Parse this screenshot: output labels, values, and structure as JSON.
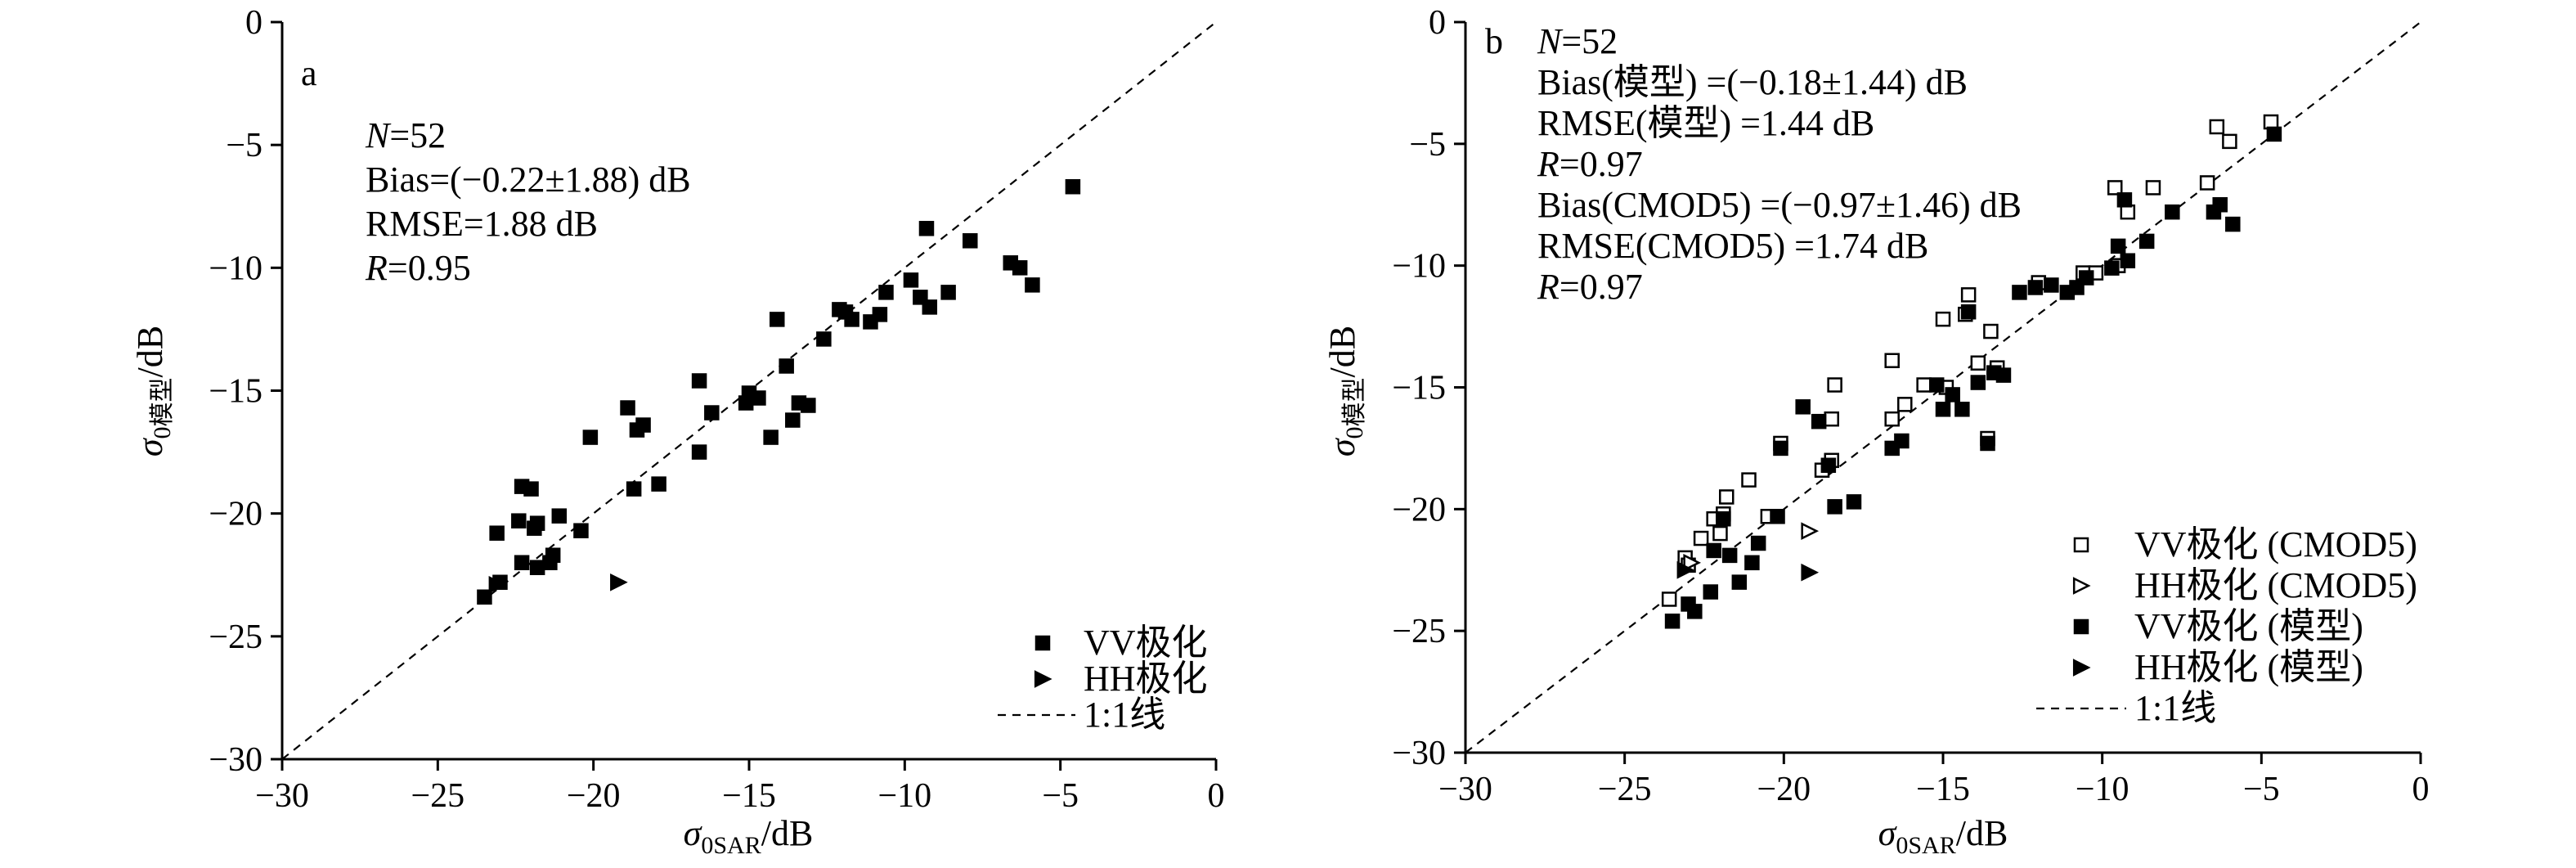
{
  "chart_data": [
    {
      "type": "scatter",
      "panel_label": "a",
      "xlabel": {
        "symbol": "σ",
        "sub": "0SAR",
        "unit": "/dB"
      },
      "ylabel": {
        "symbol": "σ",
        "sub": "0模型",
        "unit": "/dB"
      },
      "xlim": [
        -30,
        0
      ],
      "ylim": [
        -30,
        0
      ],
      "xticks": [
        -30,
        -25,
        -20,
        -15,
        -10,
        -5,
        0
      ],
      "yticks": [
        0,
        -5,
        -10,
        -15,
        -20,
        -25,
        -30
      ],
      "xtick_labels": [
        "−30",
        "−25",
        "−20",
        "−15",
        "−10",
        "−5",
        "0"
      ],
      "ytick_labels": [
        "0",
        "−5",
        "−10",
        "−15",
        "−20",
        "−25",
        "−30"
      ],
      "grid": false,
      "legend_position": "bottom-right",
      "stats": [
        {
          "italic": "N",
          "rest": "=52"
        },
        {
          "italic": "",
          "rest": "Bias=(−0.22±1.88) dB"
        },
        {
          "italic": "",
          "rest": "RMSE=1.88 dB"
        },
        {
          "italic": "R",
          "rest": "=0.95"
        }
      ],
      "reference_line": {
        "name": "1:1线",
        "x": [
          -30,
          0
        ],
        "y": [
          -30,
          0
        ]
      },
      "series": [
        {
          "name": "VV极化",
          "marker": "filled-square",
          "points": [
            [
              -23.5,
              -23.4
            ],
            [
              -23.0,
              -22.8
            ],
            [
              -23.1,
              -20.8
            ],
            [
              -22.3,
              -22.0
            ],
            [
              -22.4,
              -20.3
            ],
            [
              -22.3,
              -18.9
            ],
            [
              -22.0,
              -19.0
            ],
            [
              -21.9,
              -20.6
            ],
            [
              -21.8,
              -20.4
            ],
            [
              -21.8,
              -22.2
            ],
            [
              -21.4,
              -22.0
            ],
            [
              -21.3,
              -21.7
            ],
            [
              -21.1,
              -20.1
            ],
            [
              -20.4,
              -20.7
            ],
            [
              -20.1,
              -16.9
            ],
            [
              -18.9,
              -15.7
            ],
            [
              -18.6,
              -16.6
            ],
            [
              -18.4,
              -16.4
            ],
            [
              -18.7,
              -19.0
            ],
            [
              -17.9,
              -18.8
            ],
            [
              -16.6,
              -14.6
            ],
            [
              -16.6,
              -17.5
            ],
            [
              -16.2,
              -15.9
            ],
            [
              -15.0,
              -15.1
            ],
            [
              -15.1,
              -15.5
            ],
            [
              -14.7,
              -15.3
            ],
            [
              -14.3,
              -16.9
            ],
            [
              -14.1,
              -12.1
            ],
            [
              -13.8,
              -14.0
            ],
            [
              -13.6,
              -16.2
            ],
            [
              -13.4,
              -15.5
            ],
            [
              -13.1,
              -15.6
            ],
            [
              -12.6,
              -12.9
            ],
            [
              -12.1,
              -11.7
            ],
            [
              -11.9,
              -11.8
            ],
            [
              -11.7,
              -12.1
            ],
            [
              -11.1,
              -12.2
            ],
            [
              -10.8,
              -11.9
            ],
            [
              -10.6,
              -11.0
            ],
            [
              -9.8,
              -10.5
            ],
            [
              -9.5,
              -11.2
            ],
            [
              -9.3,
              -8.4
            ],
            [
              -9.2,
              -11.6
            ],
            [
              -8.6,
              -11.0
            ],
            [
              -7.9,
              -8.9
            ],
            [
              -6.6,
              -9.8
            ],
            [
              -6.3,
              -10.0
            ],
            [
              -5.9,
              -10.7
            ],
            [
              -4.6,
              -6.7
            ]
          ]
        },
        {
          "name": "HH极化",
          "marker": "filled-triangle-right",
          "points": [
            [
              -23.1,
              -22.9
            ],
            [
              -19.2,
              -22.8
            ]
          ]
        }
      ]
    },
    {
      "type": "scatter",
      "panel_label": "b",
      "xlabel": {
        "symbol": "σ",
        "sub": "0SAR",
        "unit": "/dB"
      },
      "ylabel": {
        "symbol": "σ",
        "sub": "0模型",
        "unit": "/dB"
      },
      "xlim": [
        -30,
        0
      ],
      "ylim": [
        -30,
        0
      ],
      "xticks": [
        -30,
        -25,
        -20,
        -15,
        -10,
        -5,
        0
      ],
      "yticks": [
        0,
        -5,
        -10,
        -15,
        -20,
        -25,
        -30
      ],
      "xtick_labels": [
        "−30",
        "−25",
        "−20",
        "−15",
        "−10",
        "−5",
        "0"
      ],
      "ytick_labels": [
        "0",
        "−5",
        "−10",
        "−15",
        "−20",
        "−25",
        "−30"
      ],
      "grid": false,
      "legend_position": "bottom-right",
      "stats": [
        {
          "italic": "N",
          "rest": "=52"
        },
        {
          "italic": "",
          "rest": "Bias(模型) =(−0.18±1.44) dB"
        },
        {
          "italic": "",
          "rest": "RMSE(模型) =1.44 dB"
        },
        {
          "italic": "R",
          "rest": "=0.97"
        },
        {
          "italic": "",
          "rest": "Bias(CMOD5) =(−0.97±1.46) dB"
        },
        {
          "italic": "",
          "rest": "RMSE(CMOD5) =1.74 dB"
        },
        {
          "italic": "R",
          "rest": "=0.97"
        }
      ],
      "reference_line": {
        "name": "1:1线",
        "x": [
          -30,
          0
        ],
        "y": [
          -30,
          0
        ]
      },
      "series": [
        {
          "name": "VV极化 (CMOD5)",
          "marker": "open-square",
          "points": [
            [
              -23.6,
              -23.7
            ],
            [
              -23.1,
              -22.0
            ],
            [
              -23.0,
              -22.3
            ],
            [
              -22.6,
              -21.2
            ],
            [
              -22.2,
              -20.4
            ],
            [
              -22.0,
              -21.0
            ],
            [
              -21.9,
              -20.2
            ],
            [
              -21.8,
              -19.5
            ],
            [
              -21.1,
              -18.8
            ],
            [
              -20.5,
              -20.3
            ],
            [
              -20.1,
              -17.3
            ],
            [
              -18.8,
              -18.4
            ],
            [
              -18.5,
              -18.0
            ],
            [
              -18.5,
              -16.3
            ],
            [
              -18.4,
              -14.9
            ],
            [
              -16.6,
              -16.3
            ],
            [
              -16.6,
              -13.9
            ],
            [
              -16.2,
              -15.7
            ],
            [
              -15.6,
              -14.9
            ],
            [
              -15.0,
              -12.2
            ],
            [
              -14.3,
              -12.0
            ],
            [
              -14.2,
              -11.2
            ],
            [
              -13.9,
              -14.0
            ],
            [
              -13.5,
              -12.7
            ],
            [
              -13.3,
              -14.2
            ],
            [
              -12.0,
              -10.7
            ],
            [
              -10.6,
              -10.3
            ],
            [
              -10.2,
              -10.3
            ],
            [
              -9.6,
              -6.8
            ],
            [
              -9.5,
              -10.0
            ],
            [
              -9.2,
              -7.8
            ],
            [
              -8.4,
              -6.8
            ],
            [
              -6.7,
              -6.6
            ],
            [
              -6.4,
              -4.3
            ],
            [
              -6.0,
              -4.9
            ],
            [
              -4.7,
              -4.1
            ],
            [
              -14.9,
              -15.0
            ],
            [
              -13.6,
              -17.1
            ]
          ]
        },
        {
          "name": "HH极化 (CMOD5)",
          "marker": "open-triangle-right",
          "points": [
            [
              -22.9,
              -22.2
            ],
            [
              -19.2,
              -20.9
            ]
          ]
        },
        {
          "name": "VV极化 (模型)",
          "marker": "filled-square",
          "points": [
            [
              -23.5,
              -24.6
            ],
            [
              -23.0,
              -23.9
            ],
            [
              -22.8,
              -24.2
            ],
            [
              -22.3,
              -23.4
            ],
            [
              -22.2,
              -21.7
            ],
            [
              -21.9,
              -20.4
            ],
            [
              -21.7,
              -21.9
            ],
            [
              -21.4,
              -23.0
            ],
            [
              -21.0,
              -22.2
            ],
            [
              -20.8,
              -21.4
            ],
            [
              -20.2,
              -20.3
            ],
            [
              -20.1,
              -17.5
            ],
            [
              -19.4,
              -15.8
            ],
            [
              -18.9,
              -16.4
            ],
            [
              -18.6,
              -18.2
            ],
            [
              -18.4,
              -19.9
            ],
            [
              -17.8,
              -19.7
            ],
            [
              -16.6,
              -17.5
            ],
            [
              -16.3,
              -17.2
            ],
            [
              -15.2,
              -14.9
            ],
            [
              -15.0,
              -15.9
            ],
            [
              -14.7,
              -15.3
            ],
            [
              -14.4,
              -15.9
            ],
            [
              -14.2,
              -11.9
            ],
            [
              -13.9,
              -14.8
            ],
            [
              -13.6,
              -17.3
            ],
            [
              -13.4,
              -14.4
            ],
            [
              -13.1,
              -14.5
            ],
            [
              -12.6,
              -11.1
            ],
            [
              -12.1,
              -10.9
            ],
            [
              -11.6,
              -10.8
            ],
            [
              -11.1,
              -11.1
            ],
            [
              -10.8,
              -10.9
            ],
            [
              -10.5,
              -10.5
            ],
            [
              -9.7,
              -10.1
            ],
            [
              -9.5,
              -9.2
            ],
            [
              -9.3,
              -7.3
            ],
            [
              -9.2,
              -9.8
            ],
            [
              -8.6,
              -9.0
            ],
            [
              -7.8,
              -7.8
            ],
            [
              -6.5,
              -7.8
            ],
            [
              -6.3,
              -7.5
            ],
            [
              -5.9,
              -8.3
            ],
            [
              -4.6,
              -4.6
            ]
          ]
        },
        {
          "name": "HH极化 (模型)",
          "marker": "filled-triangle-right",
          "points": [
            [
              -23.1,
              -22.5
            ],
            [
              -19.2,
              -22.6
            ]
          ]
        }
      ]
    }
  ]
}
